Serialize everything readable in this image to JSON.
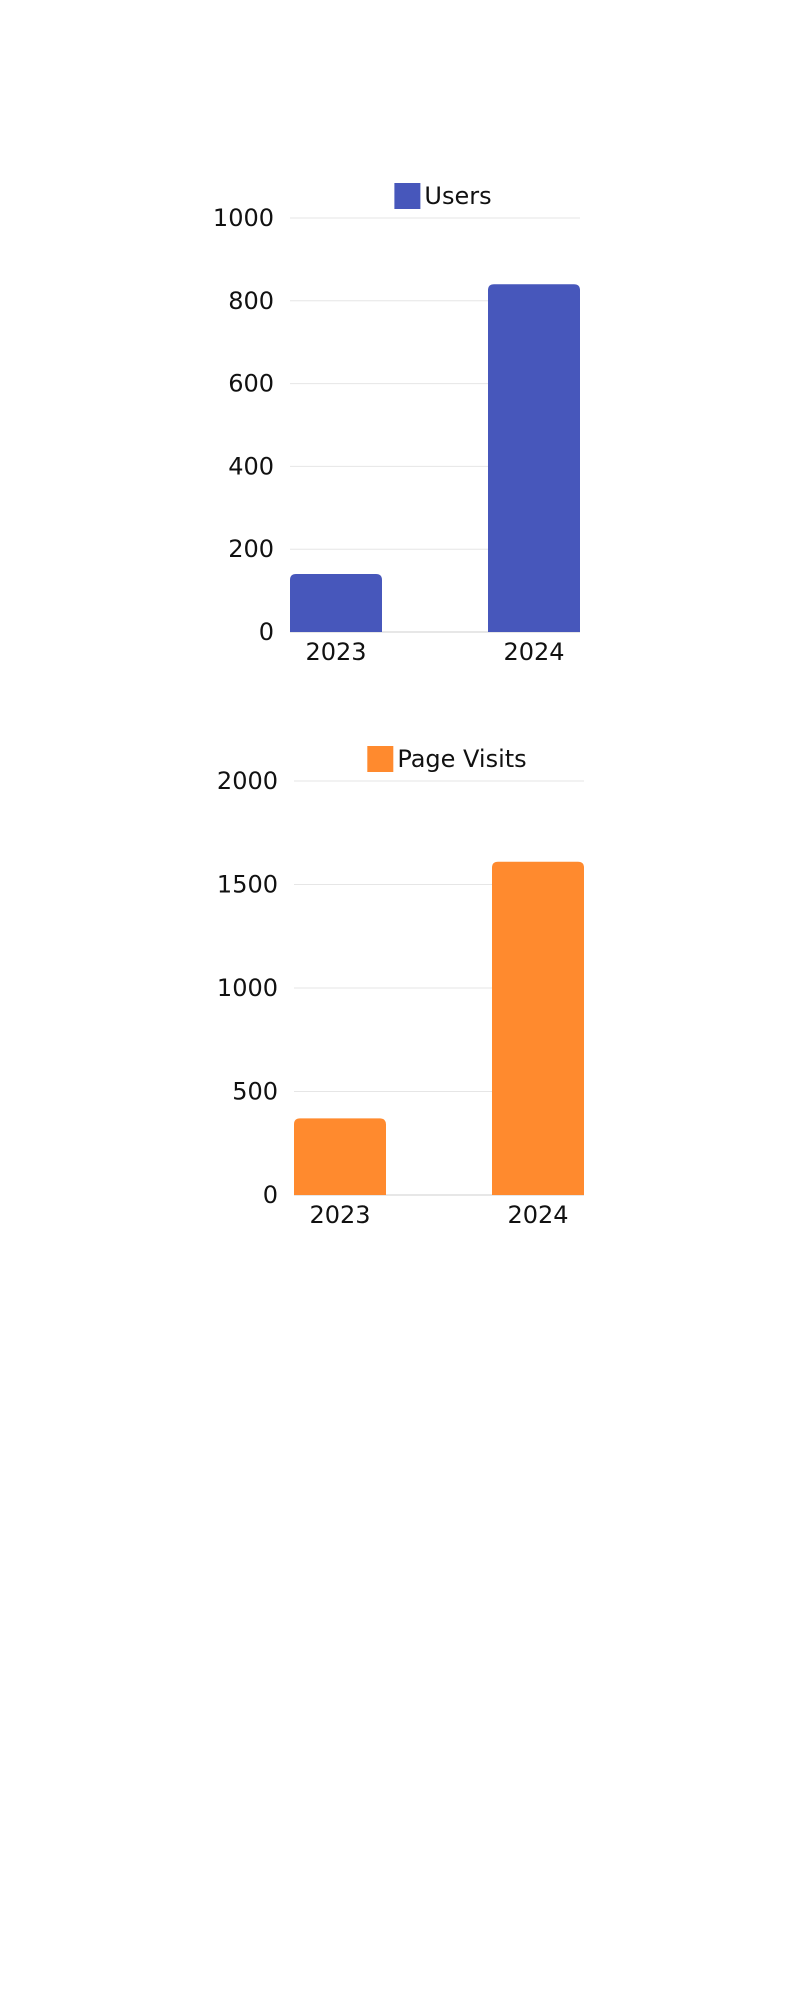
{
  "chart_data": [
    {
      "type": "bar",
      "categories": [
        "2023",
        "2024"
      ],
      "series": [
        {
          "name": "Users",
          "values": [
            140,
            840
          ],
          "color": "#4757BB"
        }
      ],
      "ylim": [
        0,
        1000
      ],
      "yticks": [
        "0",
        "200",
        "400",
        "600",
        "800",
        "1000"
      ],
      "legend": "top",
      "grid": true
    },
    {
      "type": "bar",
      "categories": [
        "2023",
        "2024"
      ],
      "series": [
        {
          "name": "Page Visits",
          "values": [
            370,
            1610
          ],
          "color": "#FF8A2E"
        }
      ],
      "ylim": [
        0,
        2000
      ],
      "yticks": [
        "0",
        "500",
        "1000",
        "1500",
        "2000"
      ],
      "legend": "top",
      "grid": true
    }
  ]
}
